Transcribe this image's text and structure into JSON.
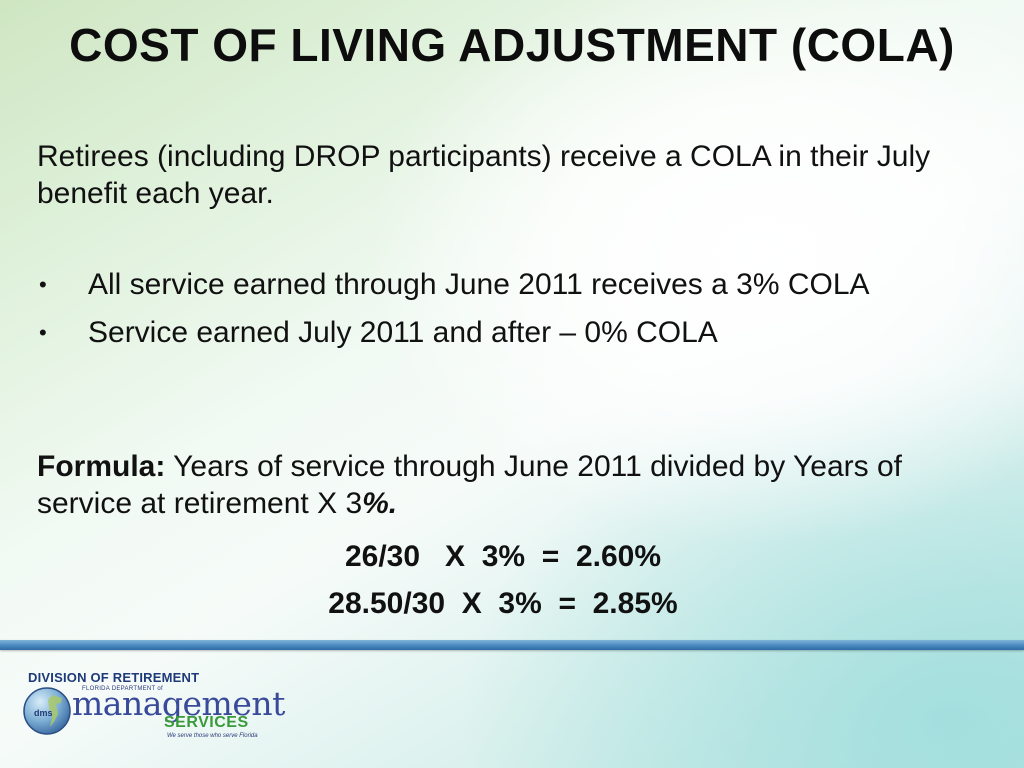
{
  "slide": {
    "title": "COST OF LIVING ADJUSTMENT (COLA)",
    "intro": "Retirees (including DROP participants) receive a COLA in their July benefit each year.",
    "bullets": [
      {
        "marker": "•",
        "text": "All service earned through June 2011 receives a 3% COLA"
      },
      {
        "marker": "•",
        "text": "Service earned July 2011 and after – 0% COLA"
      }
    ],
    "formula": {
      "label": "Formula:",
      "text": "Years of service through June 2011 divided by Years of service at retirement  X 3",
      "percent_sign": "%."
    },
    "examples": [
      "26/30   X  3%  =  2.60%",
      "28.50/30  X  3%  =  2.85%"
    ]
  },
  "footer": {
    "division": "DIVISION OF RETIREMENT",
    "globe_text": "dms",
    "florida_dept": "FLORIDA DEPARTMENT of",
    "management": "management",
    "services": "SERVICES",
    "tagline": "We serve those who serve Florida"
  },
  "colors": {
    "rule": "#4a88c0",
    "logo_blue": "#3a4a9a",
    "logo_green": "#3a9a3a"
  }
}
